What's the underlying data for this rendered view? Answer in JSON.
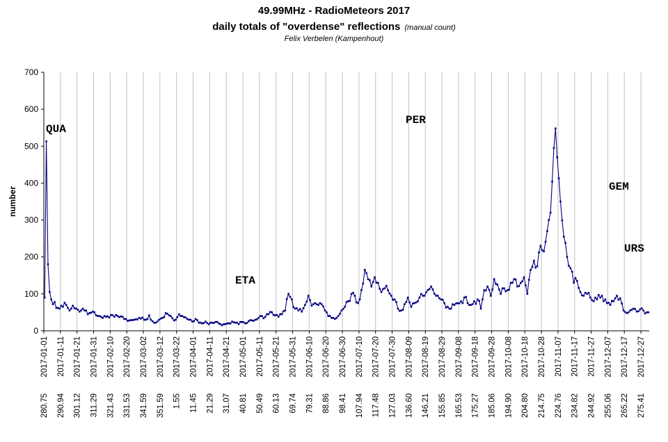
{
  "header": {
    "title_line1": "49.99MHz - RadioMeteors  2017",
    "title_line2": "daily totals of \"overdense\" reflections",
    "title_note": "(manual count)",
    "subtitle": "Felix Verbelen (Kampenhout)"
  },
  "chart_data": {
    "type": "line",
    "title": "49.99MHz - RadioMeteors  2017",
    "ylabel": "number",
    "ylim": [
      0,
      700
    ],
    "yticks": [
      0,
      100,
      200,
      300,
      400,
      500,
      600,
      700
    ],
    "grid": "vertical",
    "series_color": "#000080",
    "date_labels": [
      "2017-01-01",
      "2017-01-11",
      "2017-01-21",
      "2017-01-31",
      "2017-02-10",
      "2017-02-20",
      "2017-03-02",
      "2017-03-12",
      "2017-03-22",
      "2017-04-01",
      "2017-04-11",
      "2017-04-21",
      "2017-05-01",
      "2017-05-11",
      "2017-05-21",
      "2017-05-31",
      "2017-06-10",
      "2017-06-20",
      "2017-06-30",
      "2017-07-10",
      "2017-07-20",
      "2017-07-30",
      "2017-08-09",
      "2017-08-19",
      "2017-08-29",
      "2017-09-08",
      "2017-09-18",
      "2017-09-28",
      "2017-10-08",
      "2017-10-18",
      "2017-10-28",
      "2017-11-07",
      "2017-11-17",
      "2017-11-27",
      "2017-12-07",
      "2017-12-17",
      "2017-12-27"
    ],
    "solar_longitude_labels": [
      "280.75",
      "290.94",
      "301.12",
      "311.29",
      "321.43",
      "331.53",
      "341.59",
      "351.59",
      "1.55",
      "11.45",
      "21.29",
      "31.07",
      "40.81",
      "50.49",
      "60.13",
      "69.74",
      "79.31",
      "88.86",
      "98.41",
      "107.94",
      "117.48",
      "127.03",
      "136.60",
      "146.21",
      "155.85",
      "165.53",
      "175.27",
      "185.06",
      "194.90",
      "204.80",
      "214.75",
      "224.76",
      "234.82",
      "244.92",
      "255.06",
      "265.22",
      "275.41"
    ],
    "annotations": [
      {
        "label": "QUA",
        "day": 2
      },
      {
        "label": "ETA",
        "day": 126
      },
      {
        "label": "PER",
        "day": 224
      },
      {
        "label": "GEM",
        "day": 347
      },
      {
        "label": "URS",
        "day": 355
      }
    ],
    "anchors": [
      [
        1,
        90
      ],
      [
        2,
        513
      ],
      [
        3,
        180
      ],
      [
        4,
        105
      ],
      [
        5,
        85
      ],
      [
        6,
        72
      ],
      [
        7,
        78
      ],
      [
        8,
        62
      ],
      [
        10,
        60
      ],
      [
        12,
        65
      ],
      [
        14,
        70
      ],
      [
        16,
        55
      ],
      [
        18,
        68
      ],
      [
        20,
        60
      ],
      [
        22,
        52
      ],
      [
        24,
        60
      ],
      [
        26,
        55
      ],
      [
        28,
        48
      ],
      [
        30,
        52
      ],
      [
        32,
        42
      ],
      [
        34,
        40
      ],
      [
        36,
        35
      ],
      [
        38,
        38
      ],
      [
        40,
        36
      ],
      [
        42,
        42
      ],
      [
        45,
        40
      ],
      [
        48,
        38
      ],
      [
        50,
        32
      ],
      [
        52,
        28
      ],
      [
        55,
        30
      ],
      [
        58,
        35
      ],
      [
        60,
        36
      ],
      [
        62,
        30
      ],
      [
        64,
        42
      ],
      [
        66,
        26
      ],
      [
        68,
        22
      ],
      [
        70,
        30
      ],
      [
        72,
        35
      ],
      [
        74,
        48
      ],
      [
        76,
        42
      ],
      [
        78,
        34
      ],
      [
        80,
        30
      ],
      [
        82,
        45
      ],
      [
        84,
        40
      ],
      [
        86,
        36
      ],
      [
        88,
        30
      ],
      [
        90,
        25
      ],
      [
        92,
        32
      ],
      [
        94,
        22
      ],
      [
        96,
        20
      ],
      [
        98,
        25
      ],
      [
        100,
        18
      ],
      [
        102,
        22
      ],
      [
        104,
        24
      ],
      [
        106,
        20
      ],
      [
        108,
        15
      ],
      [
        110,
        18
      ],
      [
        112,
        20
      ],
      [
        114,
        25
      ],
      [
        116,
        22
      ],
      [
        118,
        18
      ],
      [
        120,
        24
      ],
      [
        122,
        20
      ],
      [
        124,
        26
      ],
      [
        126,
        28
      ],
      [
        128,
        30
      ],
      [
        130,
        35
      ],
      [
        132,
        40
      ],
      [
        134,
        38
      ],
      [
        136,
        45
      ],
      [
        138,
        50
      ],
      [
        140,
        42
      ],
      [
        142,
        38
      ],
      [
        144,
        45
      ],
      [
        146,
        55
      ],
      [
        148,
        100
      ],
      [
        150,
        85
      ],
      [
        152,
        60
      ],
      [
        154,
        55
      ],
      [
        156,
        52
      ],
      [
        158,
        70
      ],
      [
        160,
        95
      ],
      [
        162,
        68
      ],
      [
        164,
        75
      ],
      [
        166,
        70
      ],
      [
        168,
        72
      ],
      [
        170,
        55
      ],
      [
        172,
        40
      ],
      [
        174,
        35
      ],
      [
        176,
        32
      ],
      [
        178,
        40
      ],
      [
        180,
        55
      ],
      [
        182,
        65
      ],
      [
        184,
        80
      ],
      [
        186,
        100
      ],
      [
        188,
        95
      ],
      [
        190,
        75
      ],
      [
        192,
        110
      ],
      [
        194,
        165
      ],
      [
        196,
        140
      ],
      [
        198,
        120
      ],
      [
        200,
        145
      ],
      [
        202,
        130
      ],
      [
        204,
        105
      ],
      [
        206,
        115
      ],
      [
        208,
        110
      ],
      [
        210,
        95
      ],
      [
        212,
        85
      ],
      [
        214,
        60
      ],
      [
        216,
        55
      ],
      [
        218,
        72
      ],
      [
        220,
        90
      ],
      [
        222,
        65
      ],
      [
        224,
        75
      ],
      [
        226,
        80
      ],
      [
        228,
        100
      ],
      [
        230,
        95
      ],
      [
        232,
        110
      ],
      [
        234,
        120
      ],
      [
        236,
        100
      ],
      [
        238,
        95
      ],
      [
        240,
        85
      ],
      [
        242,
        75
      ],
      [
        244,
        65
      ],
      [
        246,
        60
      ],
      [
        248,
        70
      ],
      [
        250,
        75
      ],
      [
        252,
        80
      ],
      [
        254,
        90
      ],
      [
        256,
        75
      ],
      [
        258,
        70
      ],
      [
        260,
        80
      ],
      [
        262,
        85
      ],
      [
        264,
        60
      ],
      [
        266,
        110
      ],
      [
        268,
        120
      ],
      [
        270,
        95
      ],
      [
        272,
        140
      ],
      [
        274,
        125
      ],
      [
        276,
        100
      ],
      [
        278,
        115
      ],
      [
        280,
        110
      ],
      [
        282,
        130
      ],
      [
        284,
        140
      ],
      [
        286,
        120
      ],
      [
        288,
        130
      ],
      [
        290,
        145
      ],
      [
        292,
        100
      ],
      [
        294,
        165
      ],
      [
        296,
        190
      ],
      [
        298,
        175
      ],
      [
        300,
        230
      ],
      [
        302,
        215
      ],
      [
        304,
        270
      ],
      [
        306,
        320
      ],
      [
        308,
        495
      ],
      [
        309,
        548
      ],
      [
        310,
        470
      ],
      [
        312,
        350
      ],
      [
        314,
        255
      ],
      [
        316,
        200
      ],
      [
        318,
        170
      ],
      [
        320,
        130
      ],
      [
        322,
        135
      ],
      [
        324,
        105
      ],
      [
        326,
        95
      ],
      [
        328,
        100
      ],
      [
        330,
        90
      ],
      [
        332,
        80
      ],
      [
        334,
        85
      ],
      [
        336,
        90
      ],
      [
        338,
        80
      ],
      [
        340,
        75
      ],
      [
        342,
        70
      ],
      [
        344,
        80
      ],
      [
        346,
        95
      ],
      [
        348,
        88
      ],
      [
        350,
        55
      ],
      [
        352,
        48
      ],
      [
        354,
        55
      ],
      [
        356,
        60
      ],
      [
        358,
        52
      ],
      [
        360,
        58
      ],
      [
        362,
        55
      ],
      [
        364,
        50
      ],
      [
        366,
        60
      ]
    ]
  }
}
